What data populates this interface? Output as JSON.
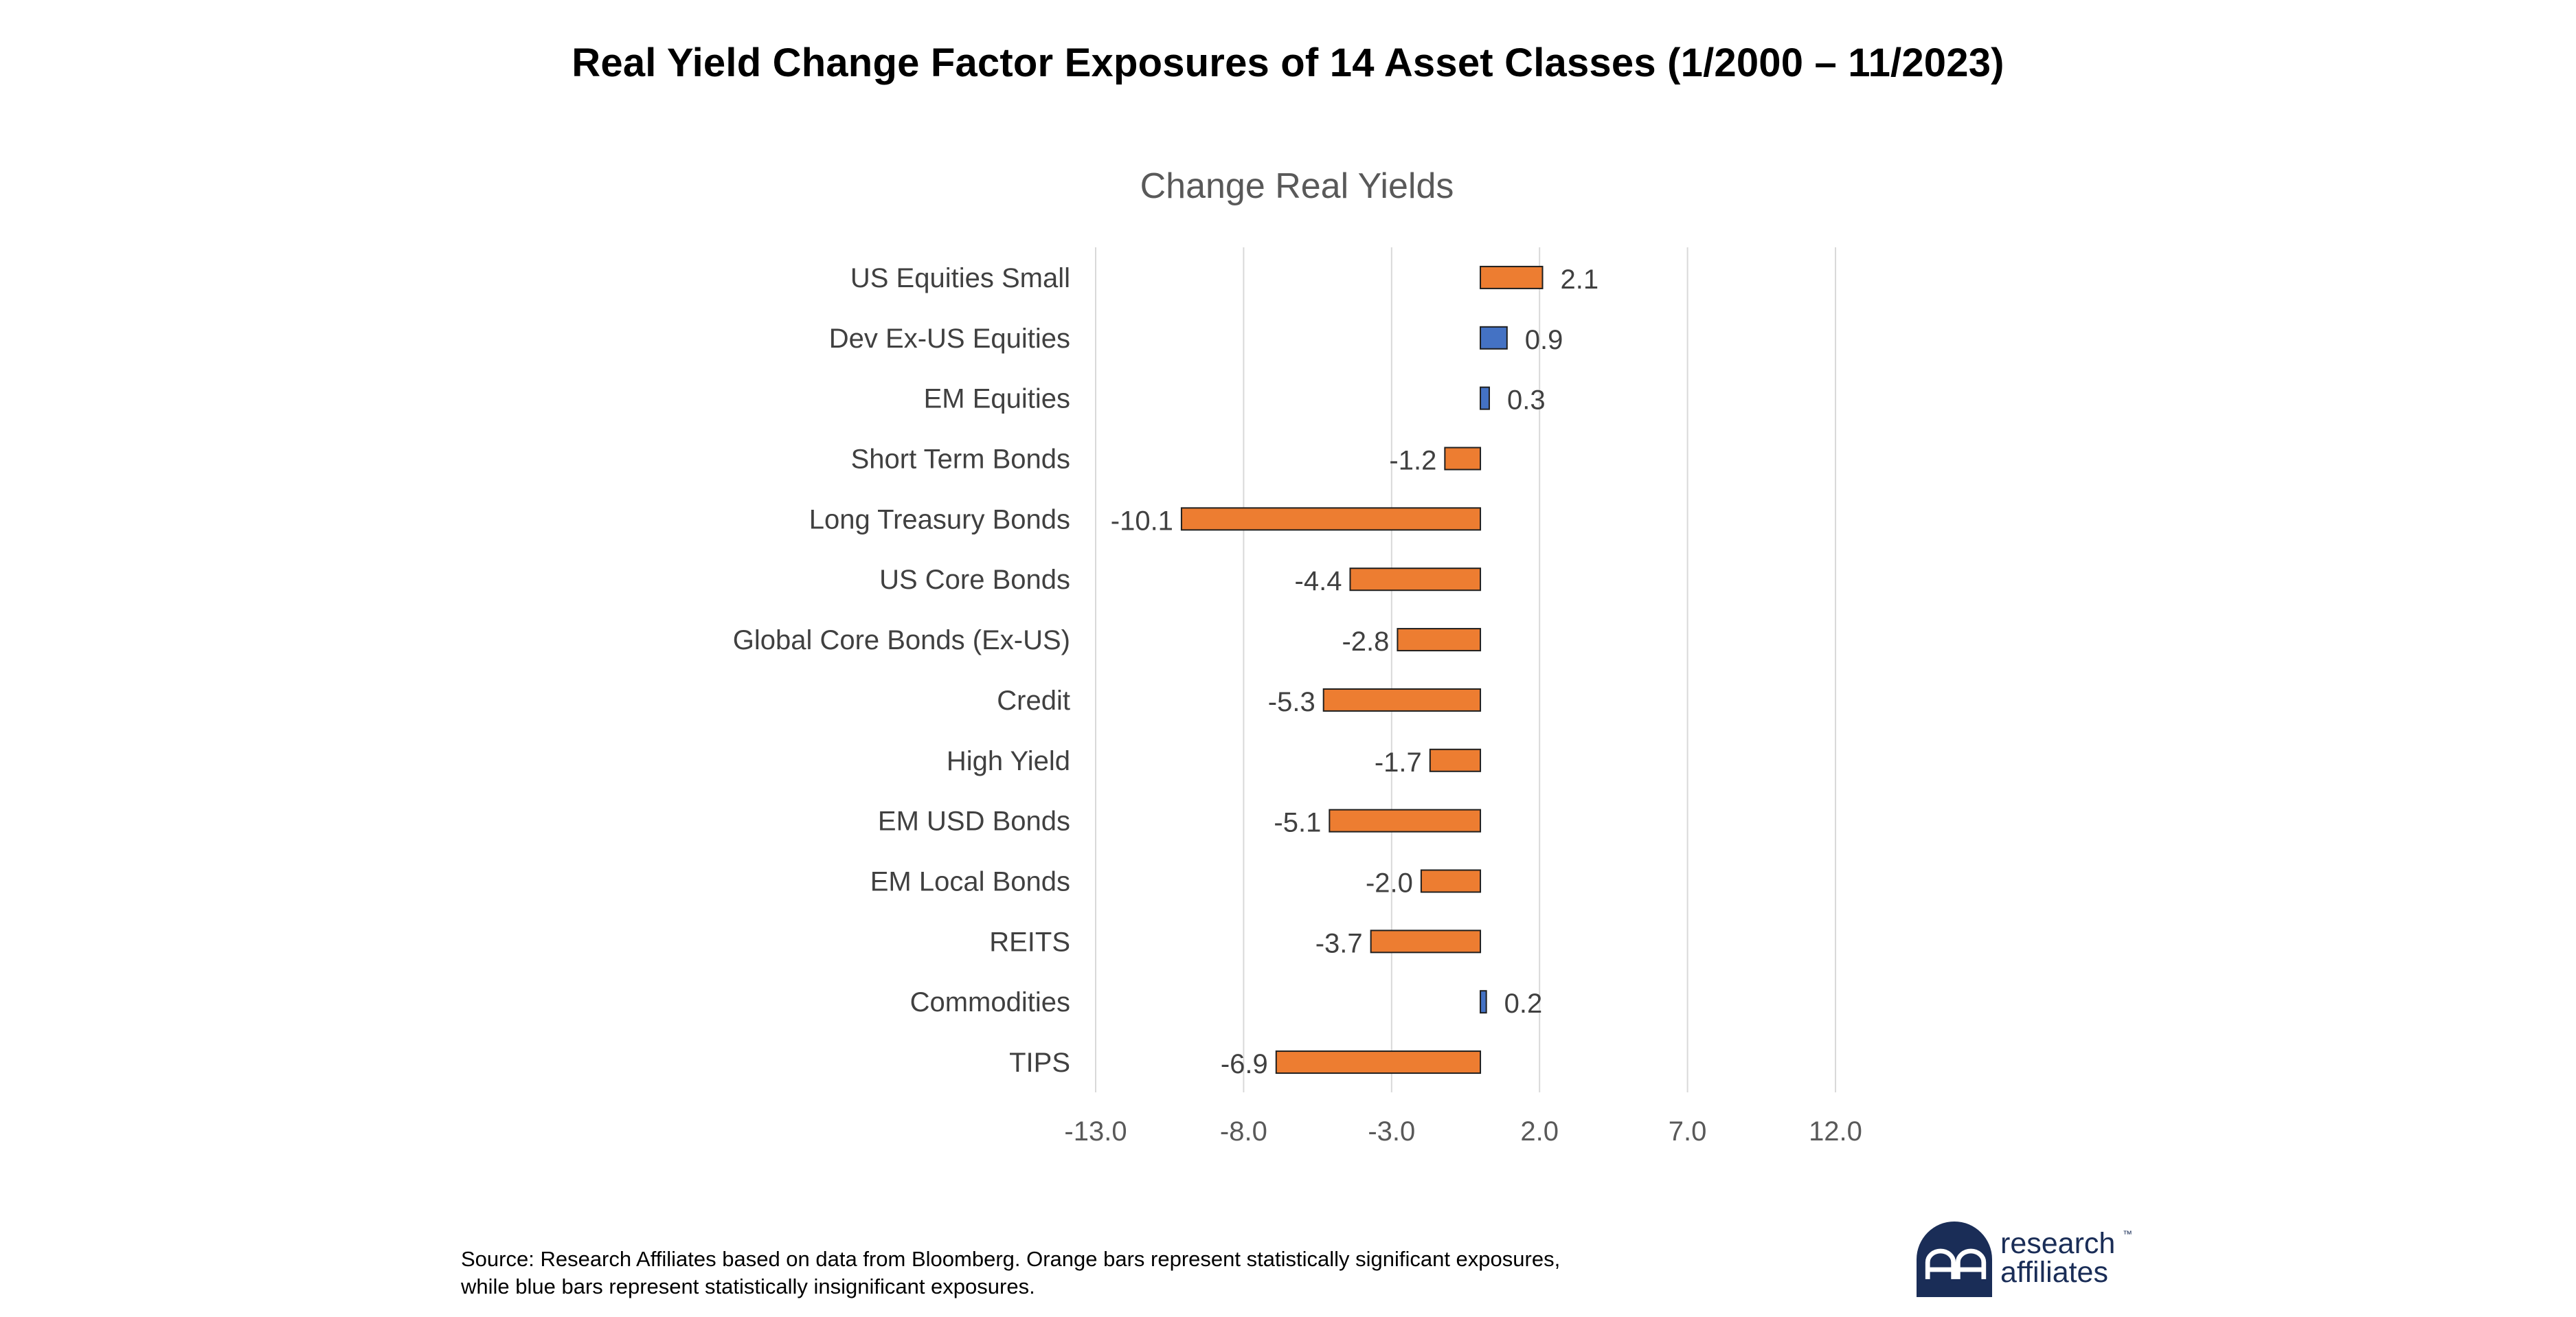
{
  "page": {
    "title": "Real Yield Change Factor Exposures of 14 Asset Classes (1/2000 – 11/2023)",
    "source_note_line1": "Source: Research Affiliates based on data from Bloomberg. Orange bars represent statistically significant exposures,",
    "source_note_line2": "while blue bars represent statistically insignificant exposures.",
    "logo": {
      "line1": "research",
      "line2": "affiliates",
      "mark": "ᗩᗩ",
      "tm": "™"
    }
  },
  "colors": {
    "significant": "#ED7D31",
    "insignificant": "#4472C4",
    "bar_outline": "#1f1f1f",
    "gridline": "#d9d9d9",
    "logo_navy": "#1a2d57"
  },
  "chart_data": {
    "type": "bar",
    "orientation": "horizontal",
    "title": "Change Real Yields",
    "categories": [
      "US Equities Small",
      "Dev Ex-US Equities",
      "EM Equities",
      "Short Term Bonds",
      "Long Treasury Bonds",
      "US Core Bonds",
      "Global Core Bonds (Ex-US)",
      "Credit",
      "High Yield",
      "EM USD Bonds",
      "EM Local Bonds",
      "REITS",
      "Commodities",
      "TIPS"
    ],
    "values": [
      2.1,
      0.9,
      0.3,
      -1.2,
      -10.1,
      -4.4,
      -2.8,
      -5.3,
      -1.7,
      -5.1,
      -2.0,
      -3.7,
      0.2,
      -6.9
    ],
    "value_labels": [
      "2.1",
      "0.9",
      "0.3",
      "-1.2",
      "-10.1",
      "-4.4",
      "-2.8",
      "-5.3",
      "-1.7",
      "-5.1",
      "-2.0",
      "-3.7",
      "0.2",
      "-6.9"
    ],
    "significant": [
      true,
      false,
      false,
      true,
      true,
      true,
      true,
      true,
      true,
      true,
      true,
      true,
      false,
      true
    ],
    "xlim": [
      -13.0,
      12.0
    ],
    "xticks": [
      -13.0,
      -8.0,
      -3.0,
      2.0,
      7.0,
      12.0
    ],
    "xtick_labels": [
      "-13.0",
      "-8.0",
      "-3.0",
      "2.0",
      "7.0",
      "12.0"
    ],
    "grid": "vertical gridlines",
    "legend": "none"
  }
}
